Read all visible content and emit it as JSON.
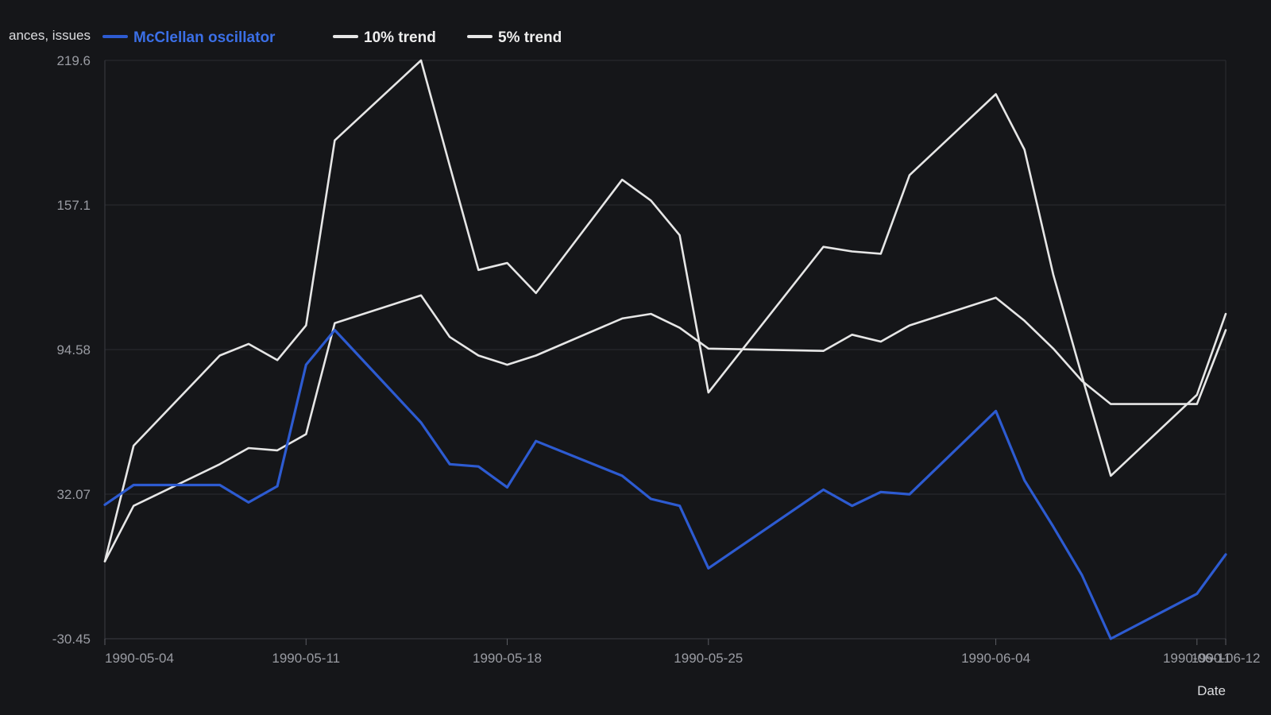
{
  "chart_data": {
    "type": "line",
    "title": "",
    "ylabel": "Advances minus declines, issues",
    "xlabel": "Date",
    "ylim": [
      -30.45,
      219.6
    ],
    "y_ticks": [
      "219.6",
      "157.1",
      "94.58",
      "32.07",
      "-30.45"
    ],
    "x_ticks": [
      {
        "date": "1990-05-04",
        "label": "1990-05-04"
      },
      {
        "date": "1990-05-11",
        "label": "1990-05-11"
      },
      {
        "date": "1990-05-18",
        "label": "1990-05-18"
      },
      {
        "date": "1990-05-25",
        "label": "1990-05-25"
      },
      {
        "date": "1990-06-04",
        "label": "1990-06-04"
      },
      {
        "date": "1990-06-11",
        "label": "1990-06-11"
      },
      {
        "date": "1990-06-12",
        "label": "1990-06-12"
      }
    ],
    "x": [
      "1990-05-04",
      "1990-05-05",
      "1990-05-08",
      "1990-05-09",
      "1990-05-10",
      "1990-05-11",
      "1990-05-12",
      "1990-05-15",
      "1990-05-16",
      "1990-05-17",
      "1990-05-18",
      "1990-05-19",
      "1990-05-22",
      "1990-05-23",
      "1990-05-24",
      "1990-05-25",
      "1990-05-29",
      "1990-05-30",
      "1990-05-31",
      "1990-06-01",
      "1990-06-04",
      "1990-06-05",
      "1990-06-06",
      "1990-06-07",
      "1990-06-08",
      "1990-06-11",
      "1990-06-12"
    ],
    "series": [
      {
        "name": "McClellan oscillator",
        "color": "#2d5bd1",
        "values": [
          27.5,
          36,
          36,
          28.5,
          35.5,
          88,
          103,
          63,
          45,
          44,
          35,
          55,
          40,
          30,
          27,
          0,
          34,
          27,
          33,
          32,
          68,
          38,
          18,
          -3,
          -30.45,
          -11,
          6
        ]
      },
      {
        "name": "10% trend",
        "color": "#e6e6e6",
        "values": [
          3,
          27,
          45,
          52,
          51,
          58,
          106,
          118,
          100,
          92,
          88,
          92,
          108,
          110,
          104,
          95,
          94,
          101,
          98,
          105,
          117,
          107,
          95,
          81,
          71,
          71,
          103
        ]
      },
      {
        "name": "5% trend",
        "color": "#e6e6e6",
        "values": [
          3,
          53,
          92,
          97,
          90,
          105,
          185,
          219.6,
          174,
          129,
          132,
          119,
          168,
          159,
          144,
          76,
          139,
          137,
          136,
          170,
          205,
          181,
          127,
          83,
          40,
          75,
          110
        ]
      }
    ],
    "legend": {
      "position": "top-left",
      "entries": [
        "McClellan oscillator",
        "10% trend",
        "5% trend"
      ]
    },
    "legend_overflow": "ances, issues",
    "grid": true
  }
}
